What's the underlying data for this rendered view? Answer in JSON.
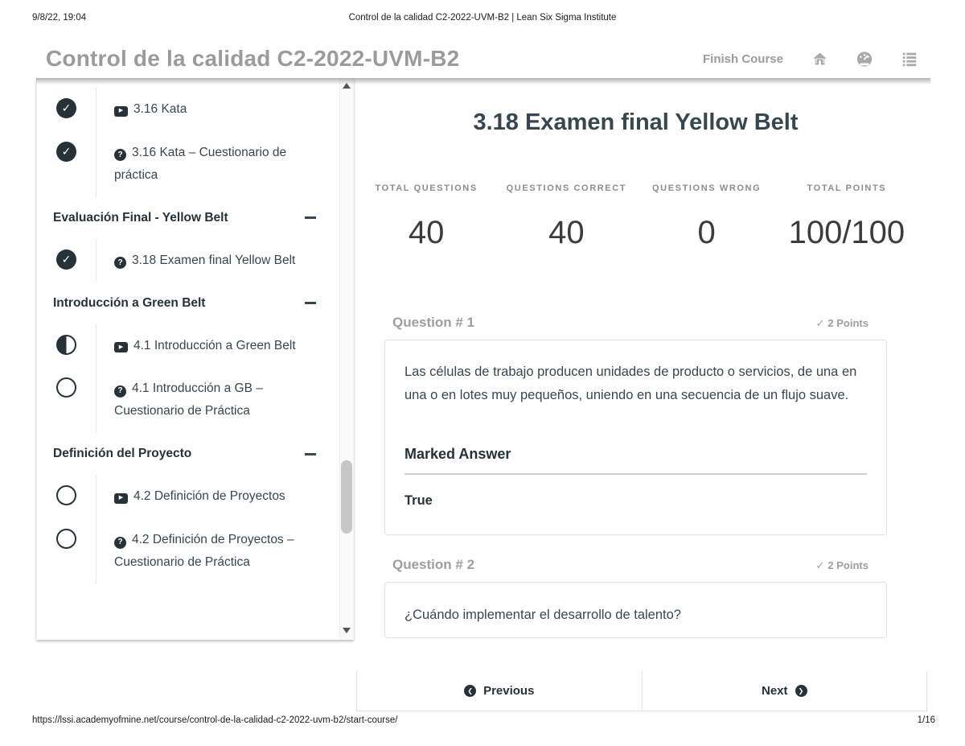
{
  "print_header": {
    "datetime": "9/8/22, 19:04",
    "doc_title": "Control de la calidad C2-2022-UVM-B2 | Lean Six Sigma Institute"
  },
  "print_footer": {
    "url": "https://lssi.academyofmine.net/course/control-de-la-calidad-c2-2022-uvm-b2/start-course/",
    "page_indicator": "1/16"
  },
  "course_header": {
    "title": "Control de la calidad C2-2022-UVM-B2",
    "finish_course_label": "Finish Course",
    "icons": [
      "home-icon",
      "gauge-icon",
      "list-icon"
    ],
    "accent_gray": "#9b9b9b"
  },
  "sidebar": {
    "rows": [
      {
        "type": "item",
        "status": "complete",
        "icon": "video",
        "label": "3.16 Kata"
      },
      {
        "type": "item",
        "status": "complete",
        "icon": "question",
        "label": "3.16 Kata – Cuestionario de práctica"
      },
      {
        "type": "section",
        "label": "Evaluación Final - Yellow Belt",
        "collapse": "minus"
      },
      {
        "type": "item",
        "status": "complete",
        "icon": "question",
        "label": "3.18 Examen final Yellow Belt"
      },
      {
        "type": "section",
        "label": "Introducción a Green Belt",
        "collapse": "minus"
      },
      {
        "type": "item",
        "status": "in-progress",
        "icon": "video",
        "label": "4.1 Introducción a Green Belt"
      },
      {
        "type": "item",
        "status": "incomplete",
        "icon": "question",
        "label": "4.1 Introducción a GB – Cuestionario de Práctica"
      },
      {
        "type": "section",
        "label": "Definición del Proyecto",
        "collapse": "minus"
      },
      {
        "type": "item",
        "status": "incomplete",
        "icon": "video",
        "label": "4.2 Definición de Proyectos"
      },
      {
        "type": "item",
        "status": "incomplete",
        "icon": "question",
        "label": "4.2 Definición de Proyectos – Cuestionario de Práctica"
      }
    ],
    "icon_glyphs": {
      "video": "▶",
      "question": "?",
      "check": "✓"
    }
  },
  "quiz": {
    "title": "3.18 Examen final Yellow Belt",
    "stats": [
      {
        "label": "TOTAL QUESTIONS",
        "value": "40"
      },
      {
        "label": "QUESTIONS CORRECT",
        "value": "40"
      },
      {
        "label": "QUESTIONS WRONG",
        "value": "0"
      },
      {
        "label": "TOTAL POINTS",
        "value": "100/100"
      }
    ],
    "questions": [
      {
        "number": "Question # 1",
        "points": "2 Points",
        "check": "✓",
        "text": "Las células de trabajo producen unidades de producto o servicios, de una en una o en lotes muy pequeños, uniendo en una secuencia de un flujo suave.",
        "marked_answer_label": "Marked Answer",
        "answer": "True"
      },
      {
        "number": "Question # 2",
        "points": "2 Points",
        "check": "✓",
        "text": "¿Cuándo implementar el desarrollo de talento?"
      }
    ]
  },
  "pager": {
    "previous_label": "Previous",
    "next_label": "Next",
    "prev_arrow": "❮",
    "next_arrow": "❯"
  },
  "colors": {
    "dark_text": "#37474f",
    "status_dark": "#263238",
    "gray_accent": "#9e9e9e",
    "card_border": "#e0e0e0"
  }
}
